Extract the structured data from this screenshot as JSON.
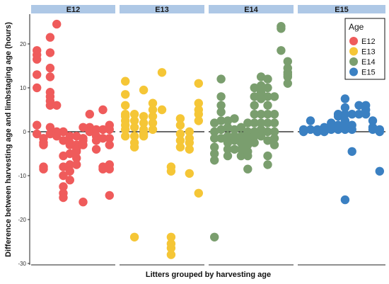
{
  "chart_data": {
    "type": "scatter",
    "xlabel": "Litters grouped by harvesting age",
    "ylabel": "Difference between harvesting age and limbstaging age (hours)",
    "ylim": [
      -31,
      27
    ],
    "yticks": [
      20,
      10,
      0,
      -10,
      -20,
      -30
    ],
    "reference_line_y": 0,
    "legend": {
      "title": "Age",
      "position": "top-right"
    },
    "colors": {
      "E12": "#ef5b5b",
      "E13": "#f5c636",
      "E14": "#7a9e6e",
      "E15": "#3a80c2"
    },
    "strip_color": "#aec8e6",
    "facets": [
      {
        "label": "E12",
        "litters": [
          [
            18.5,
            17.5,
            16.5,
            13,
            10,
            1.5,
            -0.5
          ],
          [
            -1.5,
            -2.5,
            -3,
            -8,
            -8.5
          ],
          [
            21.5,
            18,
            14.5,
            12.5,
            9,
            8,
            7,
            6,
            1,
            -0.5
          ],
          [
            24.5,
            6,
            0,
            -1
          ],
          [
            0,
            -2,
            -5.5,
            -8,
            -10,
            -12.5,
            -14,
            -15
          ],
          [
            -1,
            -2.5,
            -3,
            -5,
            -7.5,
            -9,
            -11
          ],
          [
            -1,
            -3,
            -4,
            -4.5,
            -6,
            -7.5
          ],
          [
            1,
            -1.5,
            -2,
            -3,
            -16
          ],
          [
            4,
            1,
            0
          ],
          [
            0.5,
            -1,
            -2,
            -4
          ],
          [
            5,
            0.5,
            -1.5,
            -8,
            -8.5
          ],
          [
            1.5,
            0.5,
            -1.5,
            -3,
            -7.5,
            -8.5,
            -14.5
          ]
        ]
      },
      {
        "label": "E13",
        "litters": [
          [
            11.5,
            8.5,
            6,
            4,
            3.5,
            2.5,
            1.5,
            0.5,
            -1
          ],
          [
            4,
            2.5,
            1,
            -1,
            -2.5,
            -3.5,
            -24
          ],
          [
            9.5,
            3.5,
            2,
            0.5,
            -0.5,
            -1
          ],
          [
            6.5,
            5,
            3.5,
            2,
            0.5
          ],
          [
            13.5,
            5
          ],
          [
            -8,
            -9,
            -24,
            -25.5,
            -26.5,
            -28
          ],
          [
            3,
            1.5,
            -0.5,
            -2,
            -3.5
          ],
          [
            0,
            -1.5,
            -2.5,
            -4,
            -9.5
          ],
          [
            11,
            6.5,
            5,
            4,
            2.5,
            -14
          ]
        ]
      },
      {
        "label": "E14",
        "litters": [
          [
            2,
            0,
            -1.5,
            -3.5,
            -5,
            -6.5,
            -24
          ],
          [
            12,
            8,
            6,
            4.5,
            2.5,
            0.5,
            -1.5
          ],
          [
            2.5,
            1,
            -1,
            -2.5,
            -4,
            -5.5
          ],
          [
            3,
            0.5,
            -1,
            -2,
            -4
          ],
          [
            1,
            -1,
            -2.5,
            -4,
            -5.5
          ],
          [
            2,
            0,
            -1.5,
            -3,
            -4.5,
            -5.5,
            -8.5
          ],
          [
            10,
            8,
            6,
            4,
            2,
            0,
            -1,
            -2.5
          ],
          [
            12.5,
            10.5,
            9,
            7.5,
            4,
            2,
            0.5,
            -1
          ],
          [
            12,
            10,
            8,
            6,
            4,
            2,
            0,
            -2,
            -5.5,
            -7.5
          ],
          [
            8,
            4,
            2,
            0,
            -1.5,
            -3
          ],
          [
            24,
            23.5,
            18.5
          ],
          [
            16,
            14.5,
            13.5,
            12.5,
            11,
            13
          ]
        ]
      },
      {
        "label": "E15",
        "litters": [
          [
            0.5,
            0
          ],
          [
            2.5,
            0.5
          ],
          [
            0.5,
            0
          ],
          [
            1,
            0.5,
            0
          ],
          [
            2,
            0.5
          ],
          [
            4,
            3.5,
            1.5,
            0.5
          ],
          [
            7.5,
            5.5,
            4,
            2.5,
            1.5,
            0.5,
            -15.5
          ],
          [
            4,
            1.5,
            0.5,
            -4.5
          ],
          [
            6,
            4
          ],
          [
            6,
            5,
            4
          ],
          [
            2.5,
            1,
            0.5
          ],
          [
            0.5,
            0,
            -9
          ]
        ]
      }
    ]
  }
}
